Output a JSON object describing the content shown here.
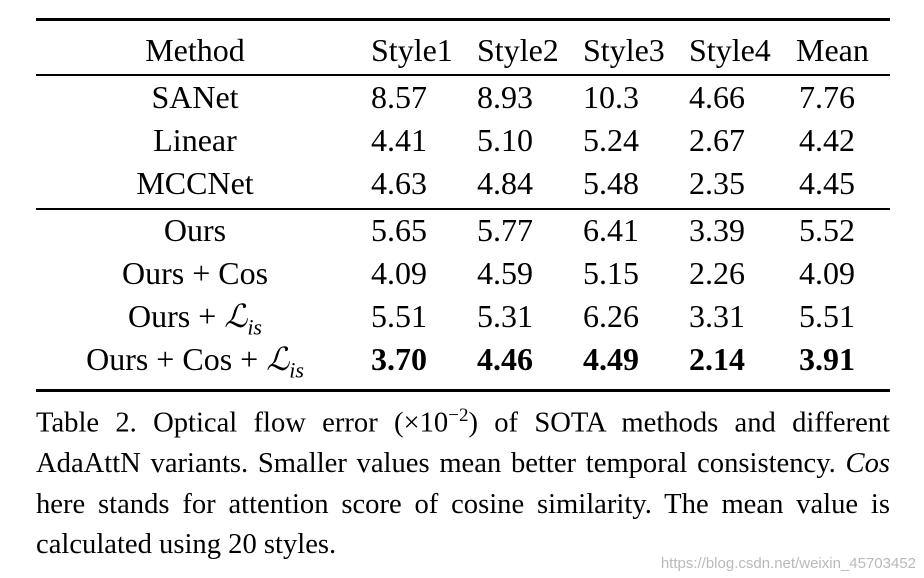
{
  "table": {
    "headers": [
      "Method",
      "Style1",
      "Style2",
      "Style3",
      "Style4",
      "Mean"
    ],
    "group1": [
      {
        "method": "SANet",
        "values": [
          "8.57",
          "8.93",
          "10.3",
          "4.66",
          "7.76"
        ]
      },
      {
        "method": "Linear",
        "values": [
          "4.41",
          "5.10",
          "5.24",
          "2.67",
          "4.42"
        ]
      },
      {
        "method": "MCCNet",
        "values": [
          "4.63",
          "4.84",
          "5.48",
          "2.35",
          "4.45"
        ]
      }
    ],
    "group2": [
      {
        "method": "Ours",
        "values": [
          "5.65",
          "5.77",
          "6.41",
          "3.39",
          "5.52"
        ]
      },
      {
        "method": "Ours + Cos",
        "values": [
          "4.09",
          "4.59",
          "5.15",
          "2.26",
          "4.09"
        ]
      },
      {
        "method_prefix": "Ours + ",
        "method_symbol": "ℒ",
        "method_sub": "is",
        "values": [
          "5.51",
          "5.31",
          "6.26",
          "3.31",
          "5.51"
        ]
      },
      {
        "method_prefix": "Ours + Cos + ",
        "method_symbol": "ℒ",
        "method_sub": "is",
        "values": [
          "3.70",
          "4.46",
          "4.49",
          "2.14",
          "3.91"
        ]
      }
    ]
  },
  "caption": {
    "part1": "Table 2. Optical flow error (×10",
    "exponent": "−2",
    "part2": ") of SOTA methods and different AdaAttN variants. Smaller values mean better temporal consistency. ",
    "cos": "Cos",
    "part3": " here stands for attention score of cosine similarity. The mean value is calculated using 20 styles."
  },
  "watermark": "https://blog.csdn.net/weixin_45703452"
}
